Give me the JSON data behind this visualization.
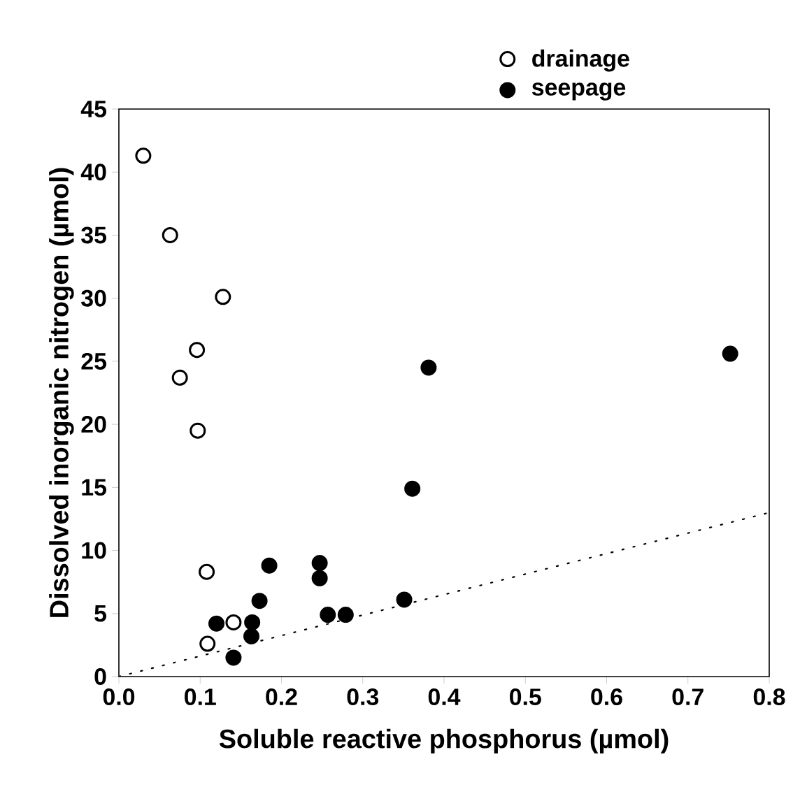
{
  "chart_data": {
    "type": "scatter",
    "xlabel": "Soluble reactive phosphorus (µmol)",
    "ylabel": "Dissolved inorganic nitrogen (µmol)",
    "xlim": [
      0,
      0.8
    ],
    "ylim": [
      0,
      45
    ],
    "xticks": [
      {
        "value": 0,
        "label": "0.0"
      },
      {
        "value": 0.1,
        "label": "0.1"
      },
      {
        "value": 0.2,
        "label": "0.2"
      },
      {
        "value": 0.3,
        "label": "0.3"
      },
      {
        "value": 0.4,
        "label": "0.4"
      },
      {
        "value": 0.5,
        "label": "0.5"
      },
      {
        "value": 0.6,
        "label": "0.6"
      },
      {
        "value": 0.7,
        "label": "0.7"
      },
      {
        "value": 0.8,
        "label": "0.8"
      }
    ],
    "yticks": [
      0,
      5,
      10,
      15,
      20,
      25,
      30,
      35,
      40,
      45
    ],
    "grid": false,
    "legend": "top right",
    "marker": "circle",
    "series": [
      {
        "name": "drainage",
        "color": "#ffffff",
        "x": [
          0.03,
          0.063,
          0.128,
          0.096,
          0.075,
          0.097,
          0.108,
          0.141,
          0.109
        ],
        "values": [
          41.3,
          35.0,
          30.1,
          25.9,
          23.7,
          19.5,
          8.3,
          4.3,
          2.6
        ]
      },
      {
        "name": "seepage",
        "color": "#000000",
        "x": [
          0.185,
          0.12,
          0.164,
          0.163,
          0.173,
          0.141,
          0.247,
          0.247,
          0.257,
          0.279,
          0.351,
          0.381,
          0.361,
          0.752
        ],
        "values": [
          8.8,
          4.2,
          4.3,
          3.2,
          6.0,
          1.5,
          9.0,
          7.8,
          4.9,
          4.9,
          6.1,
          24.5,
          14.9,
          25.6
        ]
      },
      {
        "type": "line",
        "color": "#000000",
        "marker": "none",
        "line_style": "dotted",
        "x": [
          0,
          0.8
        ],
        "values": [
          0,
          13
        ]
      }
    ]
  }
}
